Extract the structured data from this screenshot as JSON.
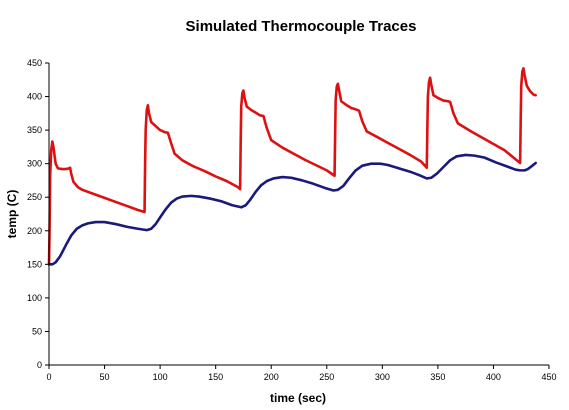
{
  "chart_data": {
    "type": "line",
    "title": "Simulated Thermocouple Traces",
    "xlabel": "time (sec)",
    "ylabel": "temp (C)",
    "xlim": [
      0,
      450
    ],
    "ylim": [
      0,
      450
    ],
    "x_ticks": [
      0,
      50,
      100,
      150,
      200,
      250,
      300,
      350,
      400,
      450
    ],
    "y_ticks": [
      0,
      50,
      100,
      150,
      200,
      250,
      300,
      350,
      400,
      450
    ],
    "grid": false,
    "legend": false,
    "series": [
      {
        "color": "#dd1111",
        "points": [
          [
            0,
            150
          ],
          [
            0.5,
            200
          ],
          [
            1,
            280
          ],
          [
            2,
            320
          ],
          [
            3,
            333
          ],
          [
            4,
            325
          ],
          [
            5,
            312
          ],
          [
            6,
            300
          ],
          [
            8,
            293
          ],
          [
            12,
            292
          ],
          [
            15,
            292
          ],
          [
            18,
            293
          ],
          [
            19,
            294
          ],
          [
            20,
            285
          ],
          [
            22,
            273
          ],
          [
            26,
            265
          ],
          [
            30,
            261
          ],
          [
            40,
            255
          ],
          [
            50,
            249
          ],
          [
            60,
            243
          ],
          [
            70,
            237
          ],
          [
            80,
            231
          ],
          [
            86,
            228
          ],
          [
            86.5,
            300
          ],
          [
            87,
            350
          ],
          [
            88,
            380
          ],
          [
            89,
            387
          ],
          [
            90,
            375
          ],
          [
            92,
            362
          ],
          [
            96,
            356
          ],
          [
            100,
            350
          ],
          [
            104,
            347
          ],
          [
            107,
            346
          ],
          [
            110,
            330
          ],
          [
            113,
            315
          ],
          [
            120,
            305
          ],
          [
            130,
            296
          ],
          [
            140,
            289
          ],
          [
            150,
            281
          ],
          [
            160,
            274
          ],
          [
            170,
            265
          ],
          [
            172,
            262
          ],
          [
            172.5,
            330
          ],
          [
            173,
            385
          ],
          [
            174,
            405
          ],
          [
            175,
            409
          ],
          [
            176,
            398
          ],
          [
            178,
            385
          ],
          [
            182,
            380
          ],
          [
            186,
            376
          ],
          [
            190,
            372
          ],
          [
            193,
            371
          ],
          [
            196,
            353
          ],
          [
            200,
            335
          ],
          [
            210,
            324
          ],
          [
            220,
            315
          ],
          [
            230,
            306
          ],
          [
            240,
            298
          ],
          [
            250,
            290
          ],
          [
            257,
            282
          ],
          [
            257.5,
            340
          ],
          [
            258,
            395
          ],
          [
            259,
            415
          ],
          [
            260,
            419
          ],
          [
            261,
            410
          ],
          [
            263,
            393
          ],
          [
            268,
            387
          ],
          [
            272,
            383
          ],
          [
            276,
            381
          ],
          [
            279,
            379
          ],
          [
            282,
            363
          ],
          [
            286,
            348
          ],
          [
            295,
            340
          ],
          [
            305,
            331
          ],
          [
            315,
            322
          ],
          [
            325,
            313
          ],
          [
            335,
            303
          ],
          [
            340,
            294
          ],
          [
            340.5,
            350
          ],
          [
            341,
            400
          ],
          [
            342,
            422
          ],
          [
            343,
            428
          ],
          [
            344,
            418
          ],
          [
            346,
            402
          ],
          [
            350,
            398
          ],
          [
            355,
            394
          ],
          [
            359,
            393
          ],
          [
            361,
            392
          ],
          [
            364,
            375
          ],
          [
            368,
            360
          ],
          [
            380,
            348
          ],
          [
            395,
            334
          ],
          [
            410,
            320
          ],
          [
            424,
            301
          ],
          [
            424.5,
            360
          ],
          [
            425,
            415
          ],
          [
            426,
            437
          ],
          [
            427,
            442
          ],
          [
            428,
            432
          ],
          [
            430,
            416
          ],
          [
            433,
            408
          ],
          [
            436,
            403
          ],
          [
            438,
            402
          ]
        ]
      },
      {
        "color": "#1a1a7a",
        "points": [
          [
            0,
            150
          ],
          [
            3,
            150
          ],
          [
            6,
            153
          ],
          [
            10,
            162
          ],
          [
            15,
            178
          ],
          [
            20,
            193
          ],
          [
            25,
            203
          ],
          [
            30,
            208
          ],
          [
            35,
            211
          ],
          [
            42,
            213
          ],
          [
            50,
            213
          ],
          [
            60,
            210
          ],
          [
            70,
            206
          ],
          [
            80,
            203
          ],
          [
            88,
            201
          ],
          [
            92,
            203
          ],
          [
            96,
            210
          ],
          [
            100,
            220
          ],
          [
            105,
            232
          ],
          [
            110,
            242
          ],
          [
            115,
            248
          ],
          [
            120,
            251
          ],
          [
            128,
            252
          ],
          [
            135,
            251
          ],
          [
            145,
            248
          ],
          [
            155,
            244
          ],
          [
            165,
            238
          ],
          [
            173,
            235
          ],
          [
            177,
            238
          ],
          [
            181,
            246
          ],
          [
            186,
            258
          ],
          [
            191,
            268
          ],
          [
            196,
            274
          ],
          [
            202,
            278
          ],
          [
            210,
            280
          ],
          [
            218,
            279
          ],
          [
            228,
            275
          ],
          [
            238,
            270
          ],
          [
            248,
            264
          ],
          [
            256,
            260
          ],
          [
            260,
            261
          ],
          [
            265,
            267
          ],
          [
            270,
            278
          ],
          [
            276,
            290
          ],
          [
            282,
            297
          ],
          [
            290,
            300
          ],
          [
            298,
            300
          ],
          [
            305,
            298
          ],
          [
            315,
            293
          ],
          [
            325,
            288
          ],
          [
            333,
            283
          ],
          [
            340,
            278
          ],
          [
            344,
            279
          ],
          [
            349,
            285
          ],
          [
            355,
            295
          ],
          [
            361,
            305
          ],
          [
            367,
            311
          ],
          [
            375,
            313
          ],
          [
            383,
            312
          ],
          [
            392,
            309
          ],
          [
            402,
            302
          ],
          [
            412,
            296
          ],
          [
            420,
            291
          ],
          [
            424,
            290
          ],
          [
            428,
            290
          ],
          [
            431,
            292
          ],
          [
            435,
            297
          ],
          [
            438,
            301
          ]
        ]
      }
    ]
  }
}
